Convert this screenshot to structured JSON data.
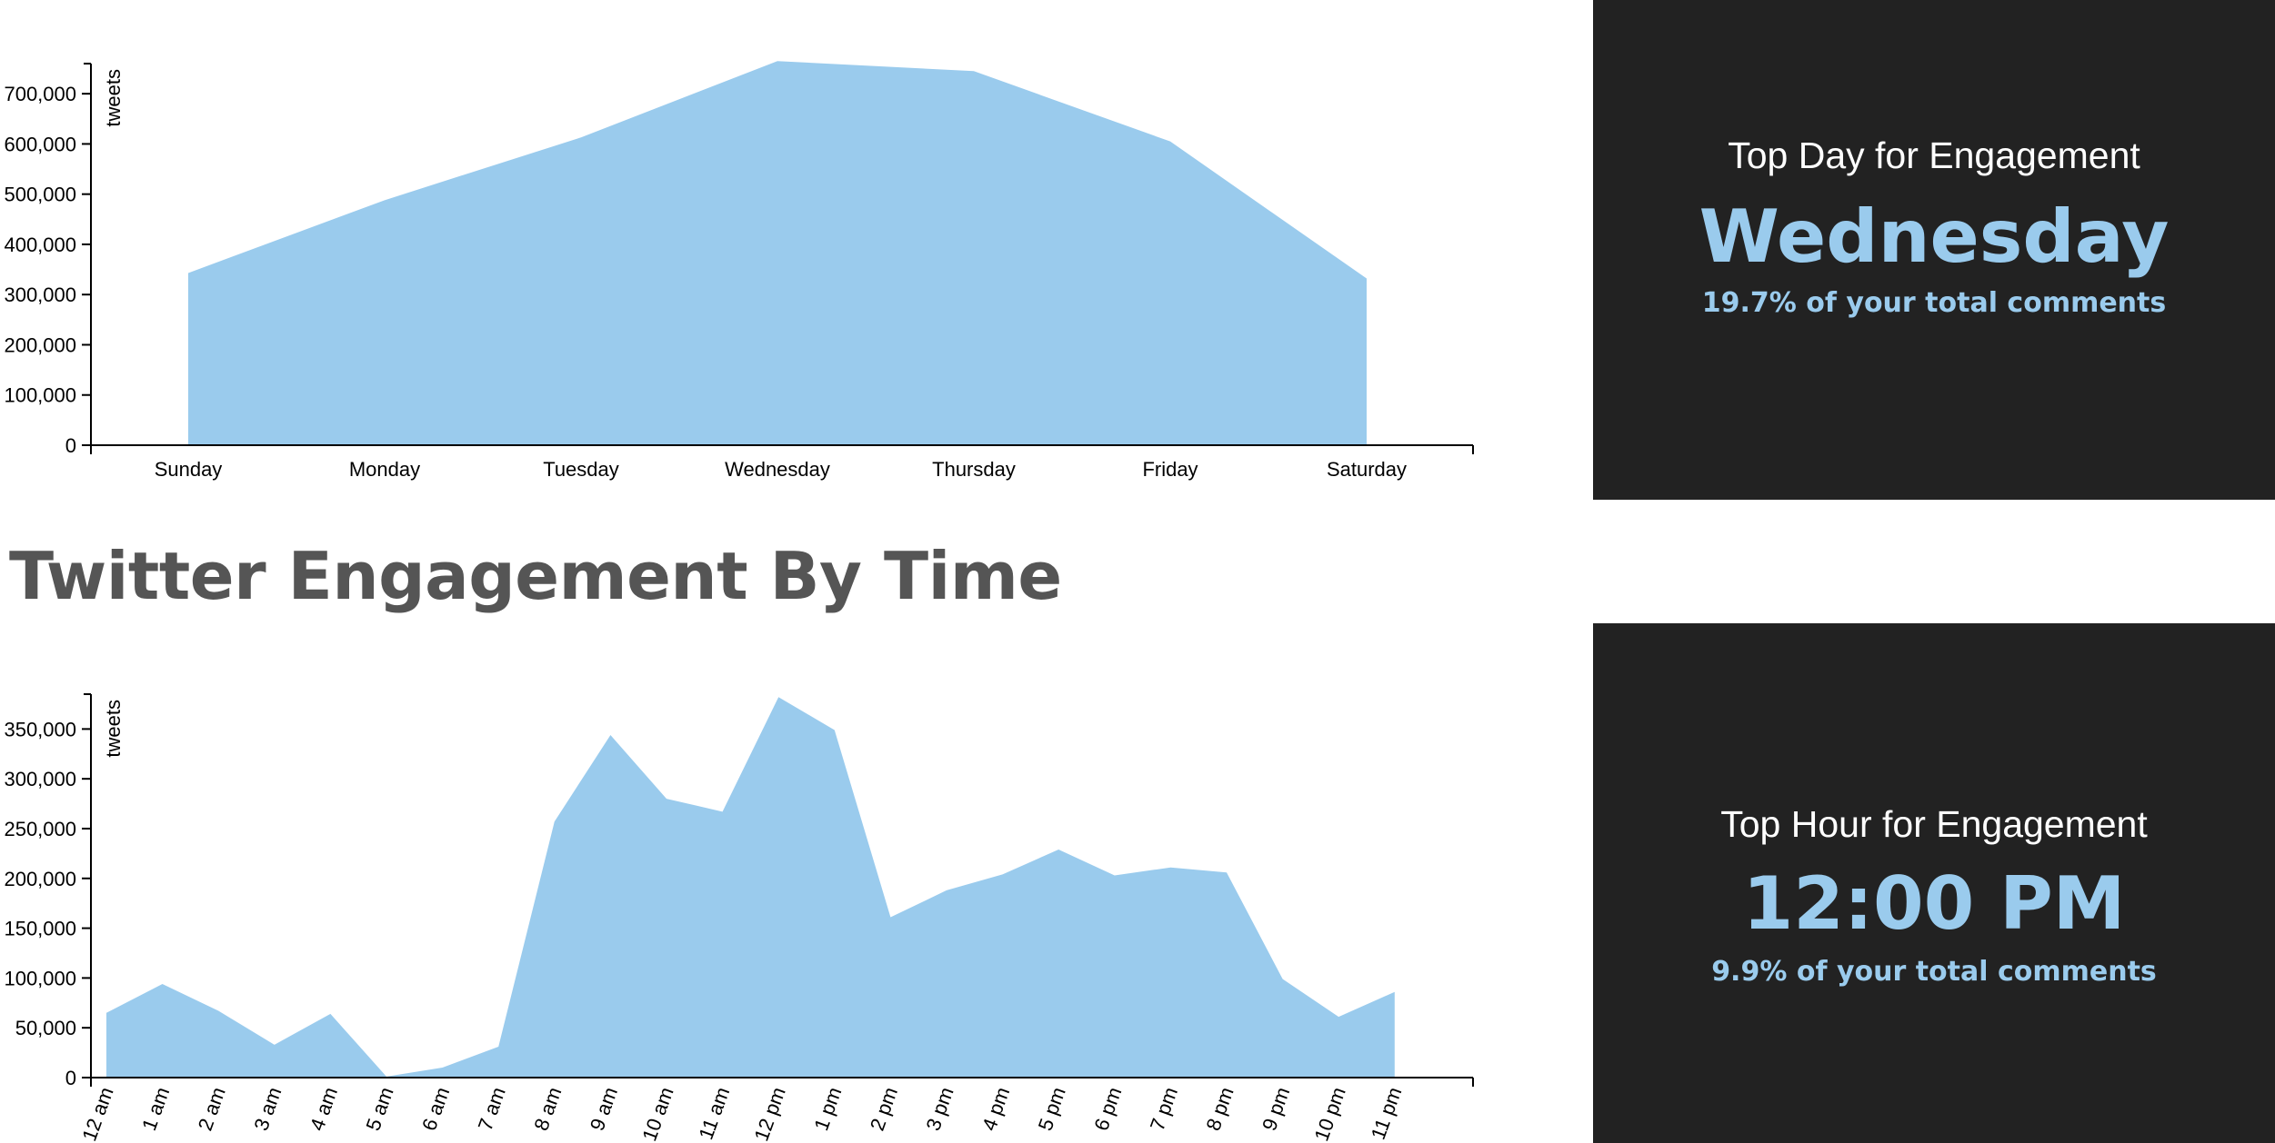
{
  "colors": {
    "area": "#9acbed",
    "panel_bg": "#222222",
    "accent": "#9acbed",
    "title": "#555555"
  },
  "section_title": "Twitter Engagement By Time",
  "day_stat": {
    "label": "Top Day for Engagement",
    "value": "Wednesday",
    "sub": "19.7% of your total comments"
  },
  "hour_stat": {
    "label": "Top Hour for Engagement",
    "value": "12:00 PM",
    "sub": "9.9% of your total comments"
  },
  "chart_data": [
    {
      "type": "area",
      "ylabel": "tweets",
      "ylim": [
        0,
        760000
      ],
      "yticks": [
        0,
        100000,
        200000,
        300000,
        400000,
        500000,
        600000,
        700000
      ],
      "categories": [
        "Sunday",
        "Monday",
        "Tuesday",
        "Wednesday",
        "Thursday",
        "Friday",
        "Saturday"
      ],
      "values": [
        343000,
        488000,
        613000,
        765000,
        745000,
        605000,
        332000
      ]
    },
    {
      "type": "area",
      "ylabel": "tweets",
      "ylim": [
        0,
        385000
      ],
      "yticks": [
        0,
        50000,
        100000,
        150000,
        200000,
        250000,
        300000,
        350000
      ],
      "categories": [
        "12 am",
        "1 am",
        "2 am",
        "3 am",
        "4 am",
        "5 am",
        "6 am",
        "7 am",
        "8 am",
        "9 am",
        "10 am",
        "11 am",
        "12 pm",
        "1 pm",
        "2 pm",
        "3 pm",
        "4 pm",
        "5 pm",
        "6 pm",
        "7 pm",
        "8 pm",
        "9 pm",
        "10 pm",
        "11 pm"
      ],
      "values": [
        65000,
        94000,
        67000,
        33000,
        64000,
        1000,
        10000,
        31000,
        257000,
        344000,
        280000,
        267000,
        382000,
        349000,
        161000,
        188000,
        204000,
        229000,
        203000,
        211000,
        206000,
        99000,
        61000,
        86000
      ]
    }
  ]
}
